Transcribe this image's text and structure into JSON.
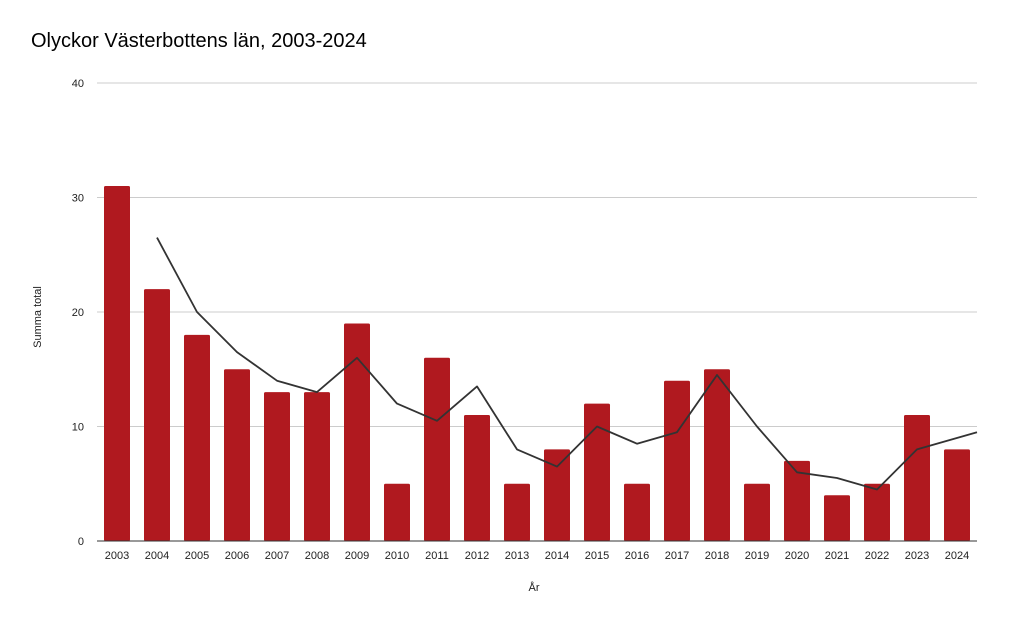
{
  "chart_data": {
    "type": "bar",
    "title": "Olyckor Västerbottens län, 2003-2024",
    "xlabel": "År",
    "ylabel": "Summa total",
    "ylim": [
      0,
      40
    ],
    "yticks": [
      0,
      10,
      20,
      30,
      40
    ],
    "grid": true,
    "categories": [
      "2003",
      "2004",
      "2005",
      "2006",
      "2007",
      "2008",
      "2009",
      "2010",
      "2011",
      "2012",
      "2013",
      "2014",
      "2015",
      "2016",
      "2017",
      "2018",
      "2019",
      "2020",
      "2021",
      "2022",
      "2023",
      "2024"
    ],
    "series": [
      {
        "type": "bar",
        "color": "#b0191f",
        "values": [
          31,
          22,
          18,
          15,
          13,
          13,
          19,
          5,
          16,
          11,
          5,
          8,
          12,
          5,
          14,
          15,
          5,
          7,
          4,
          5,
          11,
          8
        ]
      },
      {
        "type": "line",
        "color": "#333333",
        "values": [
          null,
          26.5,
          20,
          16.5,
          14,
          13,
          16,
          12,
          10.5,
          13.5,
          8,
          6.5,
          10,
          8.5,
          9.5,
          14.5,
          10,
          6,
          5.5,
          4.5,
          8,
          9.5
        ]
      }
    ]
  }
}
